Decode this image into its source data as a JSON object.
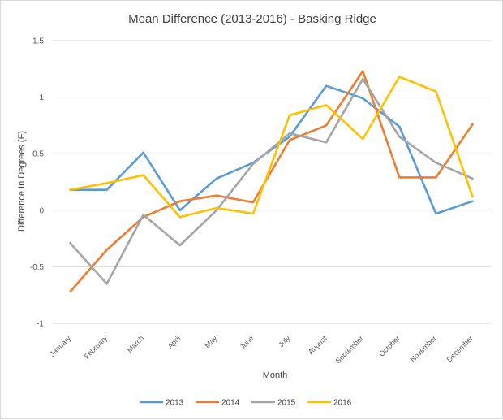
{
  "chart_data": {
    "type": "line",
    "title": "Mean Difference (2013-2016) - Basking Ridge",
    "xlabel": "Month",
    "ylabel": "Difference In Degrees (F)",
    "ylim": [
      -1,
      1.5
    ],
    "yticks": [
      "1.5",
      "1",
      "0.5",
      "0",
      "-0.5",
      "-1"
    ],
    "grid": true,
    "legend_position": "bottom",
    "categories": [
      "January",
      "February",
      "March",
      "April",
      "May",
      "June",
      "July",
      "August",
      "September",
      "October",
      "November",
      "December"
    ],
    "series": [
      {
        "name": "2013",
        "color": "#5b9bd5",
        "values": [
          0.18,
          0.18,
          0.51,
          0.0,
          0.28,
          0.42,
          0.65,
          1.1,
          0.99,
          0.74,
          -0.03,
          0.08
        ]
      },
      {
        "name": "2014",
        "color": "#ed7d31",
        "values": [
          -0.72,
          -0.35,
          -0.06,
          0.08,
          0.13,
          0.07,
          0.62,
          0.75,
          1.23,
          0.29,
          0.29,
          0.76
        ]
      },
      {
        "name": "2015",
        "color": "#a5a5a5",
        "values": [
          -0.29,
          -0.65,
          -0.04,
          -0.31,
          0.0,
          0.41,
          0.68,
          0.6,
          1.16,
          0.65,
          0.42,
          0.28
        ]
      },
      {
        "name": "2016",
        "color": "#ffc000",
        "values": [
          0.18,
          0.24,
          0.31,
          -0.06,
          0.02,
          -0.03,
          0.84,
          0.93,
          0.63,
          1.18,
          1.05,
          0.12
        ]
      }
    ]
  }
}
